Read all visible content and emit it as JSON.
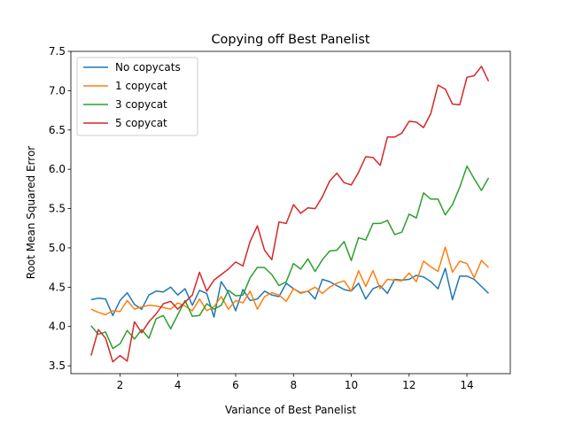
{
  "chart_data": {
    "type": "line",
    "title": "Copying off Best Panelist",
    "xlabel": "Variance of Best Panelist",
    "ylabel": "Root Mean Squared Error",
    "xlim": [
      0.3,
      15.5
    ],
    "ylim": [
      3.4,
      7.5
    ],
    "xticks": [
      2,
      4,
      6,
      8,
      10,
      12,
      14
    ],
    "yticks": [
      3.5,
      4.0,
      4.5,
      5.0,
      5.5,
      6.0,
      6.5,
      7.0,
      7.5
    ],
    "grid": false,
    "legend_position": "top-left",
    "x": [
      1.0,
      1.25,
      1.5,
      1.75,
      2.0,
      2.25,
      2.5,
      2.75,
      3.0,
      3.25,
      3.5,
      3.75,
      4.0,
      4.25,
      4.5,
      4.75,
      5.0,
      5.25,
      5.5,
      5.75,
      6.0,
      6.25,
      6.5,
      6.75,
      7.0,
      7.25,
      7.5,
      7.75,
      8.0,
      8.25,
      8.5,
      8.75,
      9.0,
      9.25,
      9.5,
      9.75,
      10.0,
      10.25,
      10.5,
      10.75,
      11.0,
      11.25,
      11.5,
      11.75,
      12.0,
      12.25,
      12.5,
      12.75,
      13.0,
      13.25,
      13.5,
      13.75,
      14.0,
      14.25,
      14.5,
      14.75
    ],
    "series": [
      {
        "name": "No copycats",
        "color": "#1f77b4",
        "values": [
          4.34,
          4.36,
          4.35,
          4.14,
          4.33,
          4.43,
          4.28,
          4.22,
          4.4,
          4.45,
          4.44,
          4.5,
          4.4,
          4.48,
          4.27,
          4.46,
          4.42,
          4.12,
          4.57,
          4.43,
          4.2,
          4.47,
          4.33,
          4.35,
          4.45,
          4.4,
          4.38,
          4.55,
          4.48,
          4.43,
          4.45,
          4.35,
          4.6,
          4.57,
          4.52,
          4.47,
          4.45,
          4.55,
          4.35,
          4.48,
          4.52,
          4.42,
          4.6,
          4.59,
          4.6,
          4.65,
          4.63,
          4.57,
          4.48,
          4.74,
          4.34,
          4.64,
          4.64,
          4.6,
          4.51,
          4.42
        ]
      },
      {
        "name": "1 copycat",
        "color": "#ff7f0e",
        "values": [
          4.22,
          4.18,
          4.15,
          4.2,
          4.19,
          4.33,
          4.22,
          4.25,
          4.27,
          4.26,
          4.24,
          4.22,
          4.3,
          4.26,
          4.2,
          4.35,
          4.2,
          4.25,
          4.38,
          4.22,
          4.33,
          4.3,
          4.45,
          4.22,
          4.38,
          4.43,
          4.4,
          4.32,
          4.48,
          4.42,
          4.45,
          4.5,
          4.42,
          4.5,
          4.55,
          4.58,
          4.45,
          4.71,
          4.51,
          4.71,
          4.48,
          4.6,
          4.59,
          4.58,
          4.68,
          4.57,
          4.83,
          4.76,
          4.7,
          5.01,
          4.69,
          4.83,
          4.8,
          4.62,
          4.84,
          4.75
        ]
      },
      {
        "name": "3 copycat",
        "color": "#2ca02c",
        "values": [
          4.01,
          3.9,
          3.93,
          3.72,
          3.78,
          3.95,
          3.84,
          3.96,
          3.85,
          4.1,
          4.14,
          3.97,
          4.15,
          4.33,
          4.13,
          4.14,
          4.29,
          4.22,
          4.27,
          4.46,
          4.39,
          4.4,
          4.62,
          4.75,
          4.75,
          4.66,
          4.52,
          4.57,
          4.8,
          4.73,
          4.86,
          4.7,
          4.85,
          4.96,
          4.97,
          5.08,
          4.84,
          5.13,
          5.1,
          5.31,
          5.31,
          5.35,
          5.17,
          5.2,
          5.43,
          5.38,
          5.7,
          5.62,
          5.62,
          5.42,
          5.55,
          5.77,
          6.04,
          5.88,
          5.73,
          5.89
        ]
      },
      {
        "name": "5 copycat",
        "color": "#d62728",
        "values": [
          3.63,
          3.96,
          3.85,
          3.55,
          3.63,
          3.56,
          4.06,
          3.92,
          4.06,
          4.16,
          4.29,
          4.32,
          4.22,
          4.31,
          4.4,
          4.69,
          4.45,
          4.59,
          4.66,
          4.73,
          4.82,
          4.77,
          5.08,
          5.28,
          4.97,
          4.85,
          5.33,
          5.31,
          5.55,
          5.44,
          5.51,
          5.5,
          5.65,
          5.85,
          5.95,
          5.83,
          5.8,
          5.96,
          6.16,
          6.15,
          6.05,
          6.41,
          6.41,
          6.46,
          6.61,
          6.6,
          6.53,
          6.71,
          7.07,
          7.02,
          6.83,
          6.82,
          7.17,
          7.19,
          7.31,
          7.12
        ]
      }
    ]
  }
}
